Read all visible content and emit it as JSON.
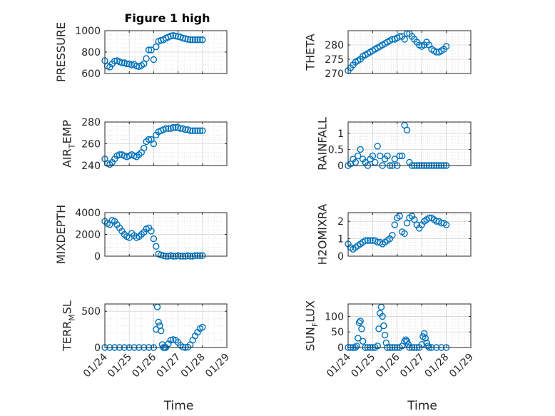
{
  "title": "Figure 1 high",
  "colors": {
    "marker": "#0072BD",
    "axis": "#262626",
    "grid": "#dfdfdf"
  },
  "chart_data": [
    {
      "type": "scatter",
      "title": "Figure 1 high",
      "ylabel": "PRESSURE",
      "xlabel": "",
      "xlim": [
        "01/24",
        "01/29"
      ],
      "ylim": [
        600,
        1000
      ],
      "yticks": [
        "600",
        "800",
        "1000"
      ],
      "xticks": [
        "01/24",
        "01/25",
        "01/26",
        "01/27",
        "01/28",
        "01/29"
      ],
      "show_xtick_labels": false,
      "grid": "on",
      "x": [
        0.0,
        0.1,
        0.2,
        0.3,
        0.4,
        0.5,
        0.6,
        0.7,
        0.8,
        0.9,
        1.0,
        1.1,
        1.2,
        1.3,
        1.4,
        1.5,
        1.6,
        1.7,
        1.8,
        1.9,
        2.0,
        2.1,
        2.2,
        2.3,
        2.4,
        2.5,
        2.6,
        2.7,
        2.8,
        2.9,
        3.0,
        3.1,
        3.2,
        3.3,
        3.4,
        3.5,
        3.6,
        3.7,
        3.8,
        3.9,
        4.0
      ],
      "y": [
        720,
        670,
        660,
        690,
        715,
        720,
        710,
        700,
        700,
        690,
        690,
        680,
        685,
        670,
        665,
        675,
        690,
        740,
        820,
        820,
        730,
        850,
        900,
        910,
        915,
        930,
        940,
        950,
        955,
        950,
        945,
        940,
        930,
        925,
        920,
        915,
        915,
        915,
        915,
        915,
        915
      ]
    },
    {
      "type": "scatter",
      "title": "",
      "ylabel": "THETA",
      "xlabel": "",
      "xlim": [
        "01/24",
        "01/29"
      ],
      "ylim": [
        270,
        285
      ],
      "yticks": [
        "270",
        "275",
        "280"
      ],
      "xticks": [
        "01/24",
        "01/25",
        "01/26",
        "01/27",
        "01/28",
        "01/29"
      ],
      "show_xtick_labels": false,
      "grid": "on",
      "x": [
        0.0,
        0.1,
        0.2,
        0.3,
        0.4,
        0.5,
        0.6,
        0.7,
        0.8,
        0.9,
        1.0,
        1.1,
        1.2,
        1.3,
        1.4,
        1.5,
        1.6,
        1.7,
        1.8,
        1.9,
        2.0,
        2.1,
        2.2,
        2.3,
        2.4,
        2.5,
        2.6,
        2.7,
        2.8,
        2.9,
        3.0,
        3.1,
        3.2,
        3.3,
        3.4,
        3.5,
        3.6,
        3.7,
        3.8,
        3.9,
        4.0
      ],
      "y": [
        271,
        272,
        273,
        274,
        274.5,
        275,
        276,
        276.5,
        277,
        277.5,
        278,
        278.5,
        279,
        279.5,
        280,
        280.5,
        281,
        281.5,
        282,
        282,
        282.5,
        283,
        283,
        282,
        284,
        284,
        283,
        282,
        281,
        280,
        279.5,
        280,
        281,
        280,
        278.5,
        278,
        277.5,
        277.5,
        278,
        278.5,
        279.5
      ]
    },
    {
      "type": "scatter",
      "title": "",
      "ylabel": "AIR_TEMP",
      "xlabel": "",
      "xlim": [
        "01/24",
        "01/29"
      ],
      "ylim": [
        240,
        280
      ],
      "yticks": [
        "240",
        "260",
        "280"
      ],
      "xticks": [
        "01/24",
        "01/25",
        "01/26",
        "01/27",
        "01/28",
        "01/29"
      ],
      "show_xtick_labels": false,
      "grid": "on",
      "x": [
        0.0,
        0.1,
        0.2,
        0.3,
        0.4,
        0.5,
        0.6,
        0.7,
        0.8,
        0.9,
        1.0,
        1.1,
        1.2,
        1.3,
        1.4,
        1.5,
        1.6,
        1.7,
        1.8,
        1.9,
        2.0,
        2.1,
        2.2,
        2.3,
        2.4,
        2.5,
        2.6,
        2.7,
        2.8,
        2.9,
        3.0,
        3.1,
        3.2,
        3.3,
        3.4,
        3.5,
        3.6,
        3.7,
        3.8,
        3.9,
        4.0
      ],
      "y": [
        246,
        242,
        241,
        243,
        246,
        249,
        250,
        250,
        249,
        248,
        249,
        250,
        249,
        248,
        250,
        252,
        256,
        262,
        264,
        264,
        260,
        268,
        271,
        272,
        273,
        274,
        274,
        274,
        275,
        275,
        275,
        274,
        274,
        273,
        273,
        272,
        272,
        272,
        272,
        272,
        272
      ]
    },
    {
      "type": "scatter",
      "title": "",
      "ylabel": "RAINFALL",
      "xlabel": "",
      "xlim": [
        "01/24",
        "01/29"
      ],
      "ylim": [
        0,
        1.35
      ],
      "yticks": [
        "0",
        "0.5",
        "1"
      ],
      "xticks": [
        "01/24",
        "01/25",
        "01/26",
        "01/27",
        "01/28",
        "01/29"
      ],
      "show_xtick_labels": false,
      "grid": "on",
      "x": [
        0.0,
        0.1,
        0.2,
        0.3,
        0.4,
        0.5,
        0.6,
        0.7,
        0.8,
        0.9,
        1.0,
        1.1,
        1.2,
        1.3,
        1.4,
        1.5,
        1.6,
        1.7,
        1.8,
        1.9,
        2.0,
        2.1,
        2.2,
        2.3,
        2.4,
        2.5,
        2.6,
        2.7,
        2.8,
        2.9,
        3.0,
        3.1,
        3.2,
        3.3,
        3.4,
        3.5,
        3.6,
        3.7,
        3.8,
        3.9,
        4.0
      ],
      "y": [
        0,
        0.05,
        0.2,
        0.1,
        0.3,
        0.5,
        0.2,
        0.1,
        0.0,
        0.2,
        0.3,
        0.1,
        0.6,
        0.3,
        0.0,
        0.2,
        0.3,
        0.0,
        0.0,
        0.2,
        0.0,
        0.3,
        0.3,
        1.25,
        1.1,
        0.1,
        0,
        0,
        0,
        0,
        0,
        0,
        0,
        0,
        0,
        0,
        0,
        0,
        0,
        0,
        0
      ]
    },
    {
      "type": "scatter",
      "title": "",
      "ylabel": "MIXDEPTH",
      "xlabel": "",
      "xlim": [
        "01/24",
        "01/29"
      ],
      "ylim": [
        0,
        4000
      ],
      "yticks": [
        "0",
        "2000",
        "4000"
      ],
      "xticks": [
        "01/24",
        "01/25",
        "01/26",
        "01/27",
        "01/28",
        "01/29"
      ],
      "show_xtick_labels": false,
      "grid": "on",
      "x": [
        0.0,
        0.1,
        0.2,
        0.3,
        0.4,
        0.5,
        0.6,
        0.7,
        0.8,
        0.9,
        1.0,
        1.1,
        1.2,
        1.3,
        1.4,
        1.5,
        1.6,
        1.7,
        1.8,
        1.9,
        2.0,
        2.1,
        2.2,
        2.3,
        2.4,
        2.5,
        2.6,
        2.7,
        2.8,
        2.9,
        3.0,
        3.1,
        3.2,
        3.3,
        3.4,
        3.5,
        3.6,
        3.7,
        3.8,
        3.9,
        4.0
      ],
      "y": [
        3200,
        3000,
        2900,
        3300,
        3200,
        2900,
        2600,
        2300,
        2000,
        1800,
        1700,
        2100,
        1900,
        1700,
        1800,
        2000,
        2200,
        2500,
        2600,
        2300,
        1600,
        900,
        200,
        100,
        50,
        0,
        0,
        50,
        0,
        0,
        50,
        0,
        0,
        0,
        50,
        0,
        0,
        50,
        50,
        50,
        50
      ]
    },
    {
      "type": "scatter",
      "title": "",
      "ylabel": "H2OMIXRA",
      "xlabel": "",
      "xlim": [
        "01/24",
        "01/29"
      ],
      "ylim": [
        0,
        2.5
      ],
      "yticks": [
        "0",
        "1",
        "2"
      ],
      "xticks": [
        "01/24",
        "01/25",
        "01/26",
        "01/27",
        "01/28",
        "01/29"
      ],
      "show_xtick_labels": false,
      "grid": "on",
      "x": [
        0.0,
        0.1,
        0.2,
        0.3,
        0.4,
        0.5,
        0.6,
        0.7,
        0.8,
        0.9,
        1.0,
        1.1,
        1.2,
        1.3,
        1.4,
        1.5,
        1.6,
        1.7,
        1.8,
        1.9,
        2.0,
        2.1,
        2.2,
        2.3,
        2.4,
        2.5,
        2.6,
        2.7,
        2.8,
        2.9,
        3.0,
        3.1,
        3.2,
        3.3,
        3.4,
        3.5,
        3.6,
        3.7,
        3.8,
        3.9,
        4.0
      ],
      "y": [
        0.7,
        0.5,
        0.4,
        0.5,
        0.6,
        0.7,
        0.8,
        0.9,
        0.9,
        0.9,
        0.9,
        0.9,
        0.8,
        0.8,
        0.7,
        0.8,
        0.9,
        1.0,
        1.2,
        1.8,
        2.2,
        2.3,
        1.4,
        1.3,
        1.9,
        2.2,
        2.3,
        2.1,
        1.8,
        1.6,
        1.8,
        2.0,
        2.1,
        2.2,
        2.2,
        2.1,
        2.0,
        2.0,
        1.9,
        1.9,
        1.8
      ]
    },
    {
      "type": "scatter",
      "title": "",
      "ylabel": "TERR_MSL",
      "xlabel": "Time",
      "xlim": [
        "01/24",
        "01/29"
      ],
      "ylim": [
        0,
        600
      ],
      "yticks": [
        "0",
        "500"
      ],
      "xticks": [
        "01/24",
        "01/25",
        "01/26",
        "01/27",
        "01/28",
        "01/29"
      ],
      "show_xtick_labels": true,
      "grid": "on",
      "x": [
        0.0,
        0.2,
        0.4,
        0.6,
        0.8,
        1.0,
        1.2,
        1.4,
        1.6,
        1.8,
        2.0,
        2.1,
        2.15,
        2.2,
        2.25,
        2.3,
        2.35,
        2.4,
        2.45,
        2.5,
        2.6,
        2.7,
        2.8,
        2.9,
        3.0,
        3.1,
        3.2,
        3.3,
        3.4,
        3.5,
        3.6,
        3.7,
        3.8,
        3.9,
        4.0
      ],
      "y": [
        0,
        0,
        0,
        0,
        0,
        0,
        0,
        0,
        0,
        0,
        0,
        250,
        560,
        350,
        300,
        230,
        40,
        0,
        0,
        0,
        50,
        100,
        110,
        100,
        70,
        30,
        5,
        0,
        5,
        40,
        100,
        160,
        210,
        260,
        280
      ]
    },
    {
      "type": "scatter",
      "title": "",
      "ylabel": "SUN_FLUX",
      "xlabel": "Time",
      "xlim": [
        "01/24",
        "01/29"
      ],
      "ylim": [
        0,
        140
      ],
      "yticks": [
        "0",
        "50",
        "100"
      ],
      "xticks": [
        "01/24",
        "01/25",
        "01/26",
        "01/27",
        "01/28",
        "01/29"
      ],
      "show_xtick_labels": true,
      "grid": "on",
      "x": [
        0.0,
        0.1,
        0.2,
        0.3,
        0.35,
        0.4,
        0.45,
        0.5,
        0.55,
        0.6,
        0.7,
        0.8,
        0.9,
        1.0,
        1.1,
        1.2,
        1.25,
        1.3,
        1.35,
        1.4,
        1.45,
        1.5,
        1.55,
        1.6,
        1.7,
        1.8,
        1.9,
        2.0,
        2.1,
        2.2,
        2.3,
        2.35,
        2.4,
        2.45,
        2.5,
        2.6,
        2.7,
        2.8,
        2.9,
        3.0,
        3.05,
        3.1,
        3.15,
        3.2,
        3.25,
        3.3,
        3.4,
        3.6,
        3.8,
        4.0
      ],
      "y": [
        0,
        0,
        0,
        0,
        5,
        30,
        80,
        85,
        60,
        20,
        0,
        0,
        0,
        0,
        0,
        5,
        60,
        110,
        130,
        100,
        70,
        40,
        15,
        0,
        0,
        0,
        0,
        0,
        0,
        5,
        20,
        25,
        20,
        10,
        0,
        0,
        0,
        0,
        0,
        10,
        35,
        45,
        30,
        15,
        5,
        0,
        0,
        0,
        0,
        0
      ]
    }
  ]
}
